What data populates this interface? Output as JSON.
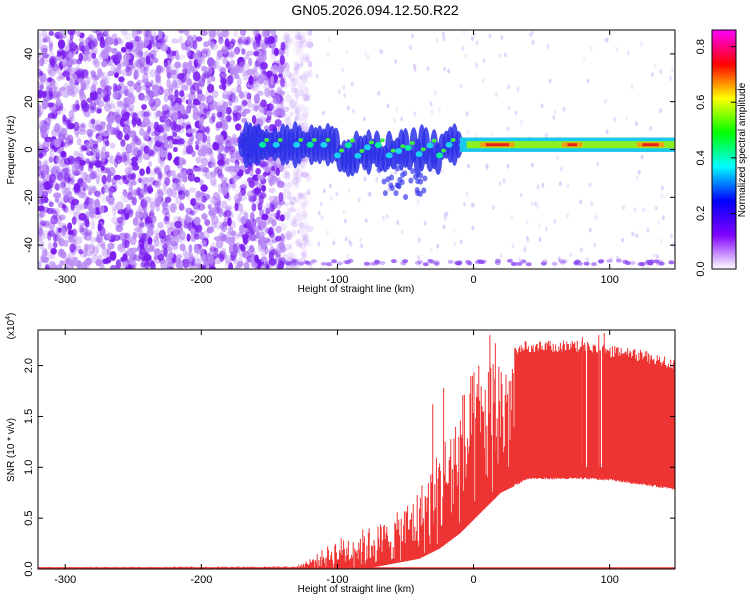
{
  "title": "GN05.2026.094.12.50.R22",
  "chart_data": [
    {
      "type": "heatmap",
      "xlabel": "Height of straight line (km)",
      "ylabel": "Frequency (Hz)",
      "xlim": [
        -320,
        148
      ],
      "ylim": [
        -50,
        50
      ],
      "xticks": [
        -300,
        -200,
        -100,
        0,
        100
      ],
      "yticks": [
        -40,
        -20,
        0,
        20,
        40
      ],
      "colorbar": {
        "label": "Normalized spectral amplitude",
        "range": [
          0,
          0.86
        ],
        "ticks": [
          "0.0",
          "0.2",
          "0.4",
          "0.6",
          "0.8"
        ],
        "colors": [
          "#ffffff",
          "#8000ff",
          "#0000ff",
          "#00ffff",
          "#00ff00",
          "#ffff00",
          "#ff0000",
          "#ff00ff"
        ]
      },
      "signal_band": {
        "center_frequency_hz": 2,
        "strong_from_km": -10,
        "onset_km": -170,
        "noise_region_km": [
          -320,
          -140
        ]
      }
    },
    {
      "type": "area",
      "xlabel": "Height of straight line (km)",
      "ylabel": "SNR (10 * v/v)",
      "multiplier": "(x10",
      "multiplier_exp": "4",
      "multiplier_close": ")",
      "xlim": [
        -320,
        148
      ],
      "ylim": [
        0,
        2.35
      ],
      "xticks": [
        -300,
        -200,
        -100,
        0,
        100
      ],
      "yticks": [
        "0.0",
        "0.5",
        "1.0",
        "1.5",
        "2.0"
      ],
      "color": "#ee3333",
      "envelope": [
        {
          "x": -320,
          "low": 0.0,
          "high": 0.02
        },
        {
          "x": -130,
          "low": 0.0,
          "high": 0.03
        },
        {
          "x": -115,
          "low": 0.0,
          "high": 0.15
        },
        {
          "x": -100,
          "low": 0.0,
          "high": 0.3
        },
        {
          "x": -80,
          "low": 0.0,
          "high": 0.4
        },
        {
          "x": -60,
          "low": 0.05,
          "high": 0.5
        },
        {
          "x": -40,
          "low": 0.1,
          "high": 0.8
        },
        {
          "x": -25,
          "low": 0.2,
          "high": 1.2
        },
        {
          "x": -10,
          "low": 0.35,
          "high": 1.7
        },
        {
          "x": 5,
          "low": 0.55,
          "high": 2.1
        },
        {
          "x": 20,
          "low": 0.75,
          "high": 2.2
        },
        {
          "x": 40,
          "low": 0.88,
          "high": 2.25
        },
        {
          "x": 80,
          "low": 0.88,
          "high": 2.25
        },
        {
          "x": 100,
          "low": 0.87,
          "high": 2.2
        },
        {
          "x": 125,
          "low": 0.82,
          "high": 2.15
        },
        {
          "x": 148,
          "low": 0.78,
          "high": 2.07
        }
      ],
      "spikes": [
        {
          "x": -30,
          "value": 1.62
        },
        {
          "x": -22,
          "value": 1.78
        },
        {
          "x": 12,
          "value": 2.3
        },
        {
          "x": 16,
          "value": 2.22
        },
        {
          "x": 80,
          "value": 2.28
        },
        {
          "x": 92,
          "value": 2.3
        },
        {
          "x": 96,
          "value": 2.32
        }
      ]
    }
  ]
}
